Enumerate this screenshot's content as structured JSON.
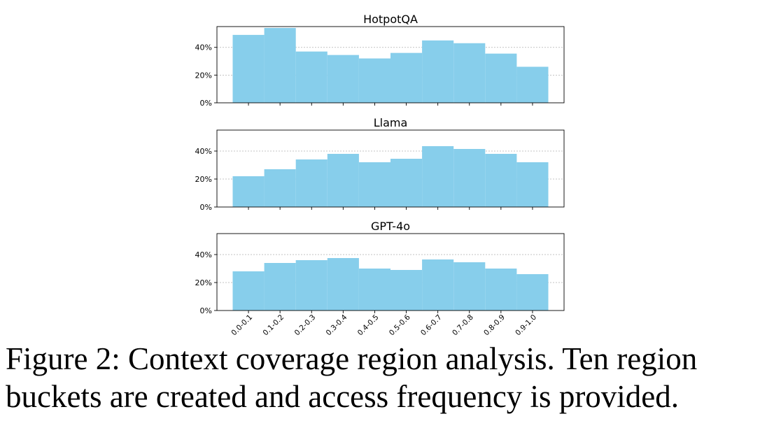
{
  "figure": {
    "caption_lines": [
      "Figure 2:  Context coverage region analysis. Ten region",
      "buckets are created and access frequency is provided."
    ]
  },
  "chart_data": [
    {
      "type": "bar",
      "title": "HotpotQA",
      "xlabel": "",
      "ylabel": "",
      "categories": [
        "0.0-0.1",
        "0.1-0.2",
        "0.2-0.3",
        "0.3-0.4",
        "0.4-0.5",
        "0.5-0.6",
        "0.6-0.7",
        "0.7-0.8",
        "0.8-0.9",
        "0.9-1.0"
      ],
      "values": [
        49,
        54,
        37,
        34.5,
        32,
        36,
        45,
        43,
        35.5,
        26
      ],
      "ylim": [
        0,
        55
      ],
      "yticks": [
        "0%",
        "20%",
        "40%"
      ],
      "ytick_values": [
        0,
        20,
        40
      ],
      "show_xticklabels": false,
      "grid": true,
      "bar_color": "#87ceeb"
    },
    {
      "type": "bar",
      "title": "Llama",
      "xlabel": "",
      "ylabel": "",
      "categories": [
        "0.0-0.1",
        "0.1-0.2",
        "0.2-0.3",
        "0.3-0.4",
        "0.4-0.5",
        "0.5-0.6",
        "0.6-0.7",
        "0.7-0.8",
        "0.8-0.9",
        "0.9-1.0"
      ],
      "values": [
        22,
        27,
        34,
        38,
        32,
        34.5,
        43.5,
        41.5,
        38,
        32
      ],
      "ylim": [
        0,
        55
      ],
      "yticks": [
        "0%",
        "20%",
        "40%"
      ],
      "ytick_values": [
        0,
        20,
        40
      ],
      "show_xticklabels": false,
      "grid": true,
      "bar_color": "#87ceeb"
    },
    {
      "type": "bar",
      "title": "GPT-4o",
      "xlabel": "",
      "ylabel": "",
      "categories": [
        "0.0-0.1",
        "0.1-0.2",
        "0.2-0.3",
        "0.3-0.4",
        "0.4-0.5",
        "0.5-0.6",
        "0.6-0.7",
        "0.7-0.8",
        "0.8-0.9",
        "0.9-1.0"
      ],
      "values": [
        28,
        34,
        36,
        37.5,
        30,
        29,
        36.5,
        34.5,
        30,
        26
      ],
      "ylim": [
        0,
        55
      ],
      "yticks": [
        "0%",
        "20%",
        "40%"
      ],
      "ytick_values": [
        0,
        20,
        40
      ],
      "show_xticklabels": true,
      "grid": true,
      "bar_color": "#87ceeb"
    }
  ]
}
